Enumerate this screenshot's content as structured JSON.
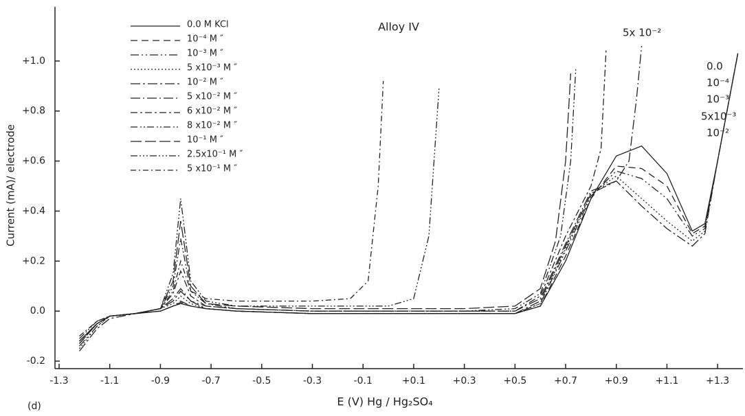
{
  "chart_data": {
    "type": "line",
    "title": "Alloy IV",
    "panel_label": "(d)",
    "x_label": "E (V) Hg / Hg₂SO₄",
    "y_label": "Current (mA)/ electrode",
    "xlim": [
      -1.3,
      1.4
    ],
    "ylim": [
      -0.23,
      1.2
    ],
    "xticks": [
      -1.3,
      -1.1,
      -0.9,
      -0.7,
      -0.5,
      -0.3,
      -0.1,
      {
        "value": 0.1,
        "label": "+0.1"
      },
      {
        "value": 0.3,
        "label": "+0.3"
      },
      {
        "value": 0.5,
        "label": "+0.5"
      },
      {
        "value": 0.7,
        "label": "+0.7"
      },
      {
        "value": 0.9,
        "label": "+0.9"
      },
      {
        "value": 1.1,
        "label": "+1.1"
      },
      {
        "value": 1.3,
        "label": "+1.3"
      }
    ],
    "yticks": [
      -0.2,
      {
        "value": 0,
        "label": "0.0"
      },
      {
        "value": 0.2,
        "label": "+0.2"
      },
      {
        "value": 0.4,
        "label": "+0.4"
      },
      {
        "value": 0.6,
        "label": "+0.6"
      },
      {
        "value": 0.8,
        "label": "+0.8"
      },
      {
        "value": 1.0,
        "label": "+1.0"
      }
    ],
    "grid": false,
    "legend": "upper left",
    "annotations": [
      "0.0",
      "10⁻⁴",
      "10⁻³",
      "5x10⁻³",
      "10⁻²",
      "5x 10⁻²"
    ],
    "series": [
      {
        "name": "0.0  M  KCl",
        "color": "#222",
        "dash": "",
        "x": [
          -1.22,
          -1.15,
          -1.1,
          -1.0,
          -0.9,
          -0.85,
          -0.82,
          -0.78,
          -0.72,
          -0.6,
          -0.3,
          0,
          0.3,
          0.5,
          0.6,
          0.7,
          0.8,
          0.9,
          1.0,
          1.1,
          1.2,
          1.25,
          1.3,
          1.38
        ],
        "values": [
          -0.12,
          -0.05,
          -0.02,
          -0.01,
          0,
          0.02,
          0.03,
          0.02,
          0.01,
          0,
          -0.01,
          -0.01,
          -0.01,
          -0.01,
          0.02,
          0.2,
          0.45,
          0.62,
          0.66,
          0.55,
          0.32,
          0.35,
          0.6,
          1.03
        ]
      },
      {
        "name": "10⁻⁴ M  ″",
        "color": "#222",
        "dash": "10 6",
        "x": [
          -1.22,
          -1.15,
          -1.1,
          -1.0,
          -0.9,
          -0.85,
          -0.82,
          -0.78,
          -0.72,
          -0.6,
          -0.3,
          0,
          0.3,
          0.5,
          0.6,
          0.7,
          0.8,
          0.9,
          1.0,
          1.1,
          1.2,
          1.25,
          1.3,
          1.38
        ],
        "values": [
          -0.13,
          -0.05,
          -0.02,
          -0.01,
          0,
          0.02,
          0.035,
          0.02,
          0.01,
          0,
          -0.01,
          -0.01,
          -0.01,
          -0.01,
          0.02,
          0.22,
          0.45,
          0.58,
          0.57,
          0.5,
          0.31,
          0.34,
          0.6,
          1.03
        ]
      },
      {
        "name": "10⁻³ M  ″",
        "color": "#222",
        "dash": "12 4 2 4 2 4",
        "x": [
          -1.22,
          -1.15,
          -1.1,
          -1.0,
          -0.9,
          -0.85,
          -0.82,
          -0.78,
          -0.72,
          -0.6,
          -0.3,
          0,
          0.3,
          0.5,
          0.6,
          0.7,
          0.8,
          0.9,
          1.0,
          1.1,
          1.2,
          1.25,
          1.3,
          1.38
        ],
        "values": [
          -0.14,
          -0.06,
          -0.02,
          -0.01,
          0,
          0.02,
          0.04,
          0.02,
          0.01,
          0,
          -0.01,
          -0.01,
          -0.01,
          -0.01,
          0.03,
          0.24,
          0.46,
          0.56,
          0.53,
          0.45,
          0.3,
          0.33,
          0.6,
          1.03
        ]
      },
      {
        "name": "5 x10⁻³ M  ″",
        "color": "#222",
        "dash": "2 3",
        "x": [
          -1.22,
          -1.15,
          -1.1,
          -1.0,
          -0.9,
          -0.85,
          -0.82,
          -0.78,
          -0.72,
          -0.6,
          -0.3,
          0,
          0.3,
          0.5,
          0.6,
          0.7,
          0.8,
          0.9,
          1.0,
          1.1,
          1.2,
          1.25,
          1.3,
          1.38
        ],
        "values": [
          -0.15,
          -0.06,
          -0.02,
          -0.01,
          0.01,
          0.03,
          0.06,
          0.03,
          0.01,
          0,
          -0.01,
          -0.01,
          -0.01,
          -0.01,
          0.03,
          0.25,
          0.47,
          0.54,
          0.45,
          0.36,
          0.28,
          0.32,
          0.6,
          1.03
        ]
      },
      {
        "name": "10⁻² M  ″",
        "color": "#222",
        "dash": "14 4 3 4",
        "x": [
          -1.22,
          -1.15,
          -1.1,
          -1.0,
          -0.9,
          -0.85,
          -0.82,
          -0.78,
          -0.72,
          -0.6,
          -0.3,
          0,
          0.3,
          0.5,
          0.6,
          0.7,
          0.8,
          0.9,
          1.0,
          1.1,
          1.2,
          1.25,
          1.3,
          1.38
        ],
        "values": [
          -0.16,
          -0.07,
          -0.03,
          -0.01,
          0.01,
          0.04,
          0.08,
          0.04,
          0.01,
          0,
          -0.01,
          -0.01,
          -0.01,
          -0.01,
          0.04,
          0.26,
          0.47,
          0.52,
          0.42,
          0.33,
          0.26,
          0.31,
          0.6,
          1.03
        ]
      },
      {
        "name": "5 x10⁻² M  ″",
        "color": "#222",
        "dash": "14 4 2 4",
        "x": [
          -1.22,
          -1.15,
          -1.1,
          -1.0,
          -0.9,
          -0.85,
          -0.82,
          -0.78,
          -0.72,
          -0.6,
          -0.3,
          0,
          0.3,
          0.5,
          0.6,
          0.7,
          0.8,
          0.9,
          0.95,
          0.98,
          1.0
        ],
        "values": [
          -0.13,
          -0.05,
          -0.02,
          -0.01,
          0.01,
          0.05,
          0.09,
          0.04,
          0.02,
          0.01,
          0,
          0,
          0,
          0,
          0.05,
          0.27,
          0.48,
          0.52,
          0.6,
          0.85,
          1.06
        ]
      },
      {
        "name": "6 x10⁻² M  ″",
        "color": "#222",
        "dash": "10 4 3 4",
        "x": [
          -1.22,
          -1.15,
          -1.1,
          -1.0,
          -0.9,
          -0.85,
          -0.82,
          -0.78,
          -0.72,
          -0.6,
          -0.3,
          0,
          0.3,
          0.5,
          0.6,
          0.7,
          0.8,
          0.84,
          0.86
        ],
        "values": [
          -0.12,
          -0.05,
          -0.02,
          -0.01,
          0.01,
          0.07,
          0.16,
          0.06,
          0.02,
          0.01,
          0,
          0,
          0,
          0,
          0.06,
          0.3,
          0.5,
          0.65,
          1.05
        ]
      },
      {
        "name": "8 x10⁻² M  ″",
        "color": "#222",
        "dash": "10 4 2 3 2 3",
        "x": [
          -1.22,
          -1.15,
          -1.1,
          -1.0,
          -0.9,
          -0.85,
          -0.82,
          -0.78,
          -0.72,
          -0.6,
          -0.3,
          0,
          0.3,
          0.5,
          0.6,
          0.68,
          0.72,
          0.74
        ],
        "values": [
          -0.12,
          -0.05,
          -0.02,
          -0.01,
          0.01,
          0.1,
          0.29,
          0.08,
          0.03,
          0.01,
          0,
          0,
          0,
          0.01,
          0.07,
          0.3,
          0.6,
          0.97
        ]
      },
      {
        "name": "10⁻¹ M  ″",
        "color": "#222",
        "dash": "16 5",
        "x": [
          -1.22,
          -1.15,
          -1.1,
          -1.0,
          -0.9,
          -0.85,
          -0.82,
          -0.78,
          -0.72,
          -0.6,
          -0.3,
          0,
          0.3,
          0.5,
          0.6,
          0.66,
          0.7,
          0.72
        ],
        "values": [
          -0.12,
          -0.05,
          -0.02,
          -0.01,
          0.01,
          0.12,
          0.36,
          0.1,
          0.03,
          0.02,
          0.01,
          0.01,
          0.01,
          0.02,
          0.09,
          0.28,
          0.6,
          0.95
        ]
      },
      {
        "name": "2.5x10⁻¹ M  ″",
        "color": "#222",
        "dash": "10 3 2 3 2 3 2 3",
        "x": [
          -1.22,
          -1.15,
          -1.1,
          -1.0,
          -0.9,
          -0.85,
          -0.82,
          -0.78,
          -0.72,
          -0.6,
          -0.3,
          0,
          0.1,
          0.16,
          0.2
        ],
        "values": [
          -0.11,
          -0.04,
          -0.02,
          -0.01,
          0.01,
          0.15,
          0.45,
          0.12,
          0.04,
          0.02,
          0.02,
          0.02,
          0.05,
          0.3,
          0.89
        ]
      },
      {
        "name": "5 x10⁻¹ M  ″",
        "color": "#222",
        "dash": "8 4 2 4",
        "x": [
          -1.22,
          -1.15,
          -1.1,
          -1.0,
          -0.9,
          -0.85,
          -0.82,
          -0.78,
          -0.72,
          -0.6,
          -0.3,
          -0.15,
          -0.08,
          -0.04,
          -0.02
        ],
        "values": [
          -0.1,
          -0.04,
          -0.02,
          -0.01,
          0.01,
          0.08,
          0.2,
          0.08,
          0.05,
          0.04,
          0.04,
          0.05,
          0.12,
          0.5,
          0.92
        ]
      }
    ]
  }
}
